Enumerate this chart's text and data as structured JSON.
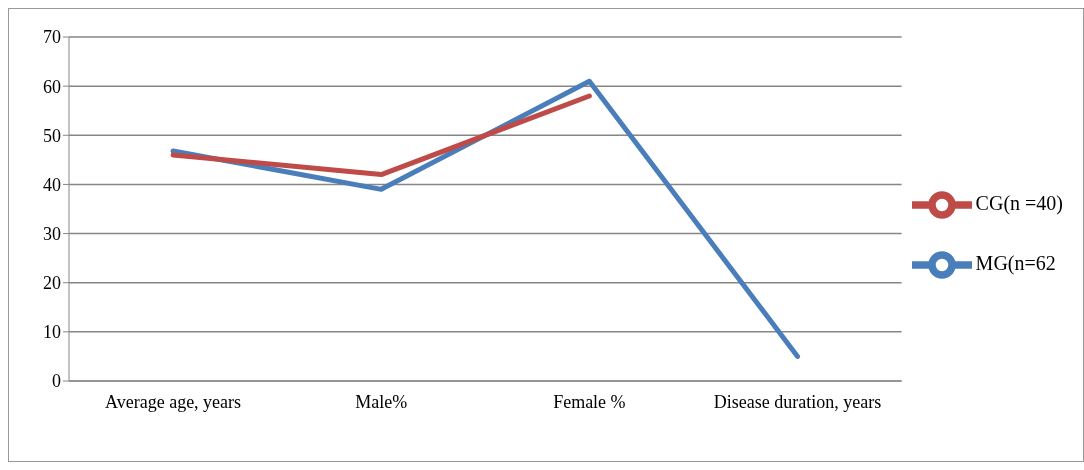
{
  "chart_data": {
    "type": "line",
    "categories": [
      "Average age, years",
      "Male%",
      "Female %",
      "Disease duration, years"
    ],
    "series": [
      {
        "name": "MG(n=62",
        "color": "#4a7ebb",
        "values": [
          46.8,
          39,
          61,
          5
        ]
      },
      {
        "name": "CG(n =40)",
        "color": "#be4b48",
        "values": [
          46,
          42,
          58,
          null
        ]
      }
    ],
    "ylim": [
      0,
      70
    ],
    "yticks": [
      0,
      10,
      20,
      30,
      40,
      50,
      60,
      70
    ],
    "grid": "y",
    "legend": "right",
    "marker": "none",
    "line_style": "solid"
  }
}
